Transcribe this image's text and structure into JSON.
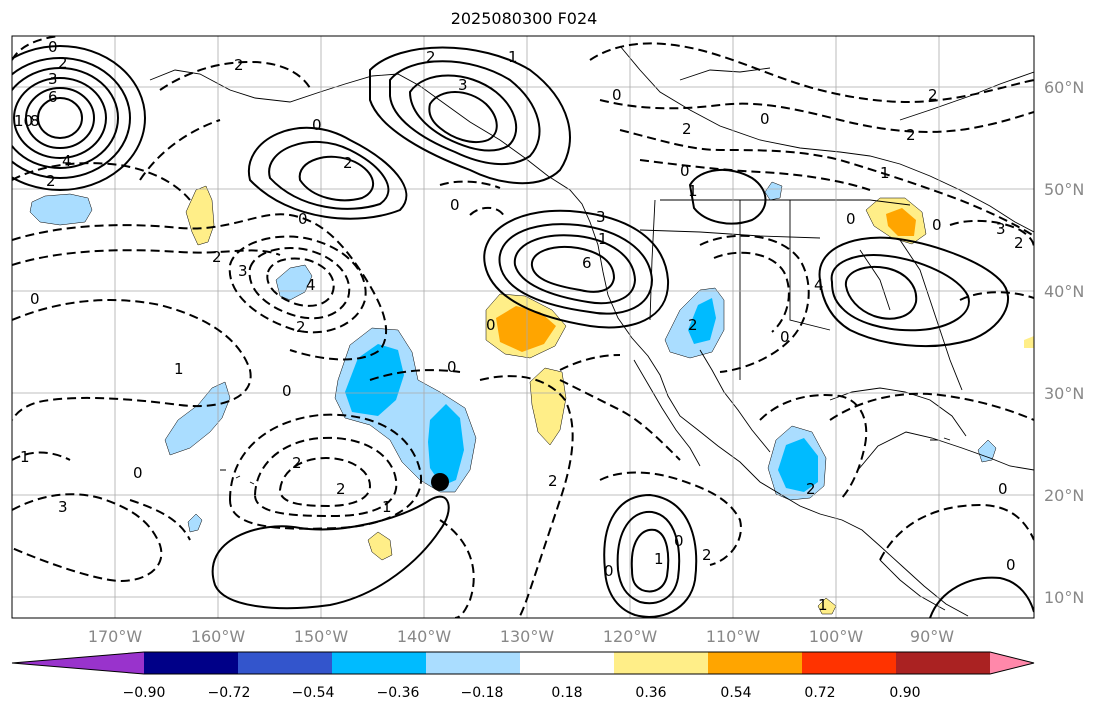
{
  "title": "2025080300 F024",
  "longitude_labels": [
    "170°W",
    "160°W",
    "150°W",
    "140°W",
    "130°W",
    "120°W",
    "110°W",
    "100°W",
    "90°W"
  ],
  "latitude_labels": [
    "60°N",
    "50°N",
    "40°N",
    "30°N",
    "20°N",
    "10°N"
  ],
  "colorbar": {
    "tick_labels": [
      "−0.90",
      "−0.72",
      "−0.54",
      "−0.36",
      "−0.18",
      "0.18",
      "0.36",
      "0.54",
      "0.72",
      "0.90"
    ],
    "colors": [
      "#9933cc",
      "#000088",
      "#3355cc",
      "#00bbff",
      "#aaddff",
      "#ffffff",
      "#ffee88",
      "#ffa500",
      "#ff3300",
      "#aa2222",
      "#ff88aa"
    ]
  },
  "contour_labels": [
    "0",
    "2",
    "3",
    "6",
    "10",
    "8",
    "4",
    "2",
    "2",
    "2",
    "3",
    "1",
    "0",
    "2",
    "0",
    "2",
    "3",
    "4",
    "2",
    "0",
    "1",
    "0",
    "1",
    "2",
    "0",
    "2",
    "3",
    "0",
    "3",
    "6",
    "0",
    "1",
    "2",
    "0",
    "1",
    "2",
    "0",
    "1",
    "0",
    "2",
    "0",
    "0",
    "2",
    "2",
    "1",
    "0",
    "3",
    "2",
    "4",
    "0",
    "1",
    "0",
    "2",
    "0",
    "2",
    "0",
    "0",
    "1"
  ],
  "marker": {
    "name": "point",
    "lon": -137.2,
    "lat": 21.3
  }
}
